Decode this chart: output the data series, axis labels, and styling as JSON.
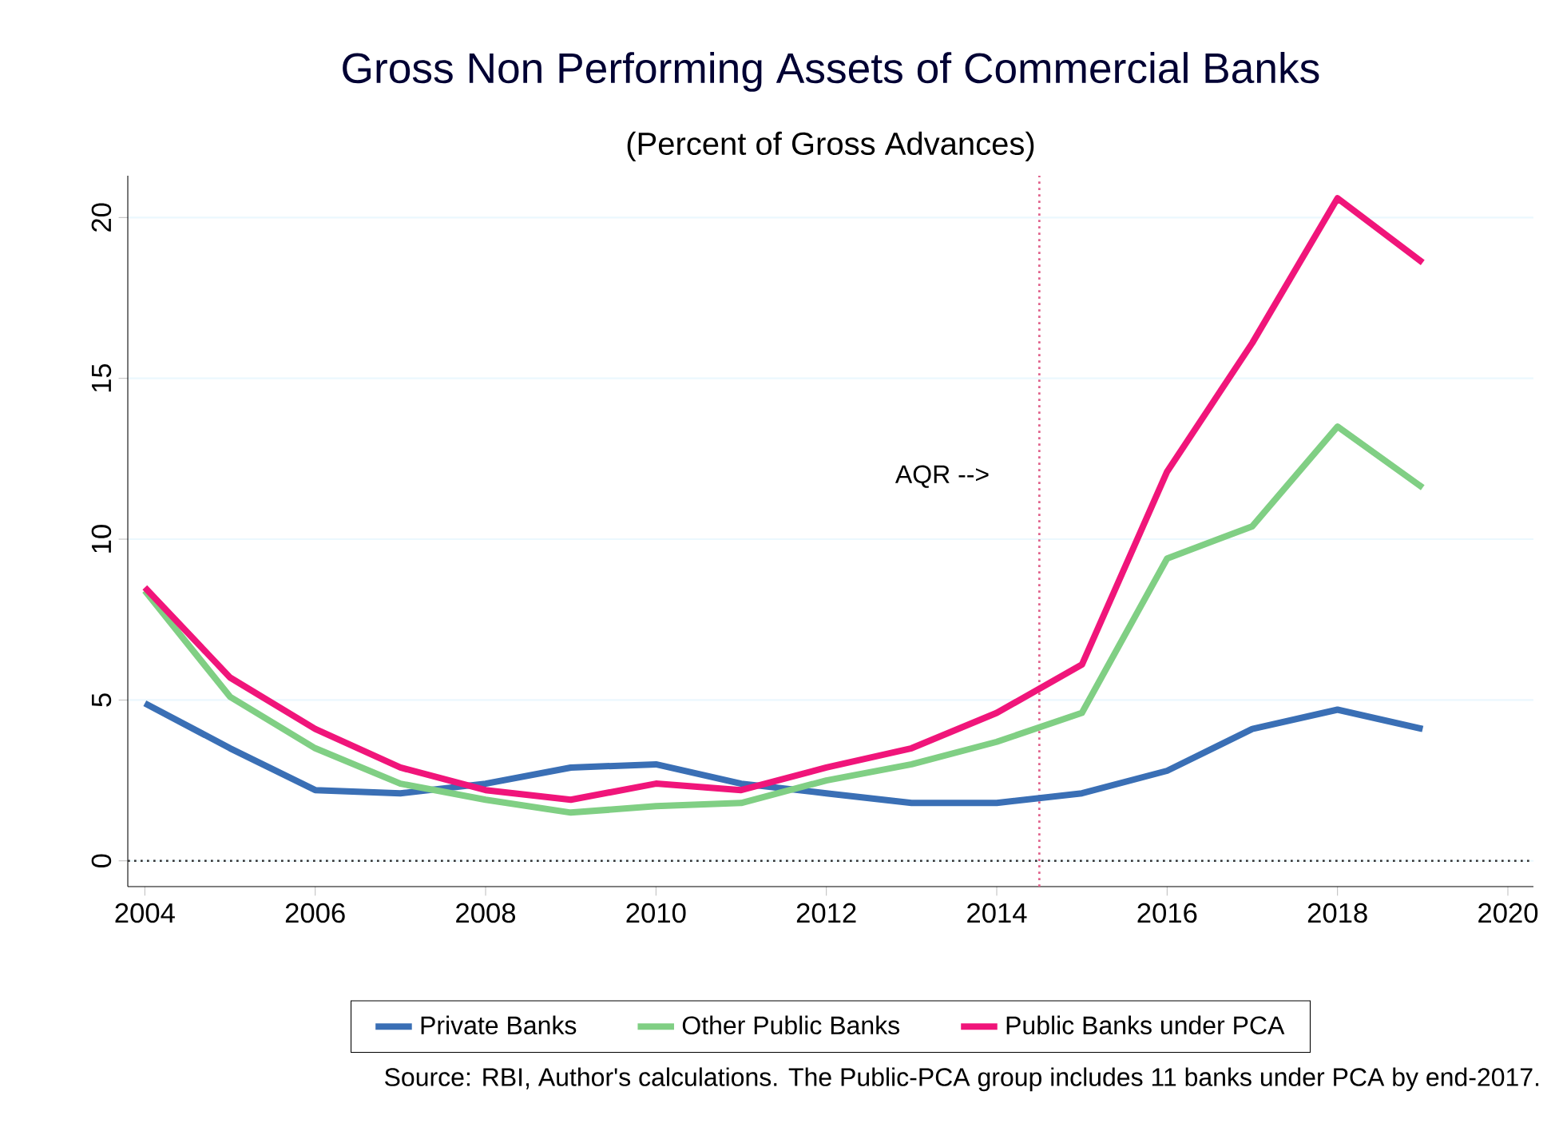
{
  "chart_data": {
    "type": "line",
    "title": "Gross Non Performing Assets of Commercial Banks",
    "subtitle": "(Percent of Gross Advances)",
    "x": [
      2004,
      2005,
      2006,
      2007,
      2008,
      2009,
      2010,
      2011,
      2012,
      2013,
      2014,
      2015,
      2016,
      2017,
      2018,
      2019
    ],
    "series": [
      {
        "name": "Private Banks",
        "color": "#3a6fb5",
        "values": [
          4.9,
          3.5,
          2.2,
          2.1,
          2.4,
          2.9,
          3.0,
          2.4,
          2.1,
          1.8,
          1.8,
          2.1,
          2.8,
          4.1,
          4.7,
          4.1
        ]
      },
      {
        "name": "Other Public Banks",
        "color": "#80cf84",
        "values": [
          8.4,
          5.1,
          3.5,
          2.4,
          1.9,
          1.5,
          1.7,
          1.8,
          2.5,
          3.0,
          3.7,
          4.6,
          9.4,
          10.4,
          13.5,
          11.6
        ]
      },
      {
        "name": "Public Banks under PCA",
        "color": "#f0157a",
        "values": [
          8.5,
          5.7,
          4.1,
          2.9,
          2.2,
          1.9,
          2.4,
          2.2,
          2.9,
          3.5,
          4.6,
          6.1,
          12.1,
          16.1,
          20.6,
          18.6
        ]
      }
    ],
    "xlim": [
      2003.8,
      2020.3
    ],
    "ylim": [
      -0.8,
      21.3
    ],
    "xticks": [
      2004,
      2006,
      2008,
      2010,
      2012,
      2014,
      2016,
      2018,
      2020
    ],
    "yticks": [
      0,
      5,
      10,
      15,
      20
    ],
    "grid": "y",
    "legend": "bottom",
    "line_style": "solid",
    "marker": "none",
    "ref_lines": [
      {
        "axis": "x",
        "value": 2014.5,
        "color": "#e0608a",
        "line_style": "dotted"
      },
      {
        "axis": "y",
        "value": 0,
        "color": "#333333",
        "line_style": "dotted"
      }
    ],
    "annotations": [
      "AQR -->",
      "Source: RBI, Author's calculations. The Public-PCA group includes 11 banks under PCA by end-2017."
    ]
  }
}
